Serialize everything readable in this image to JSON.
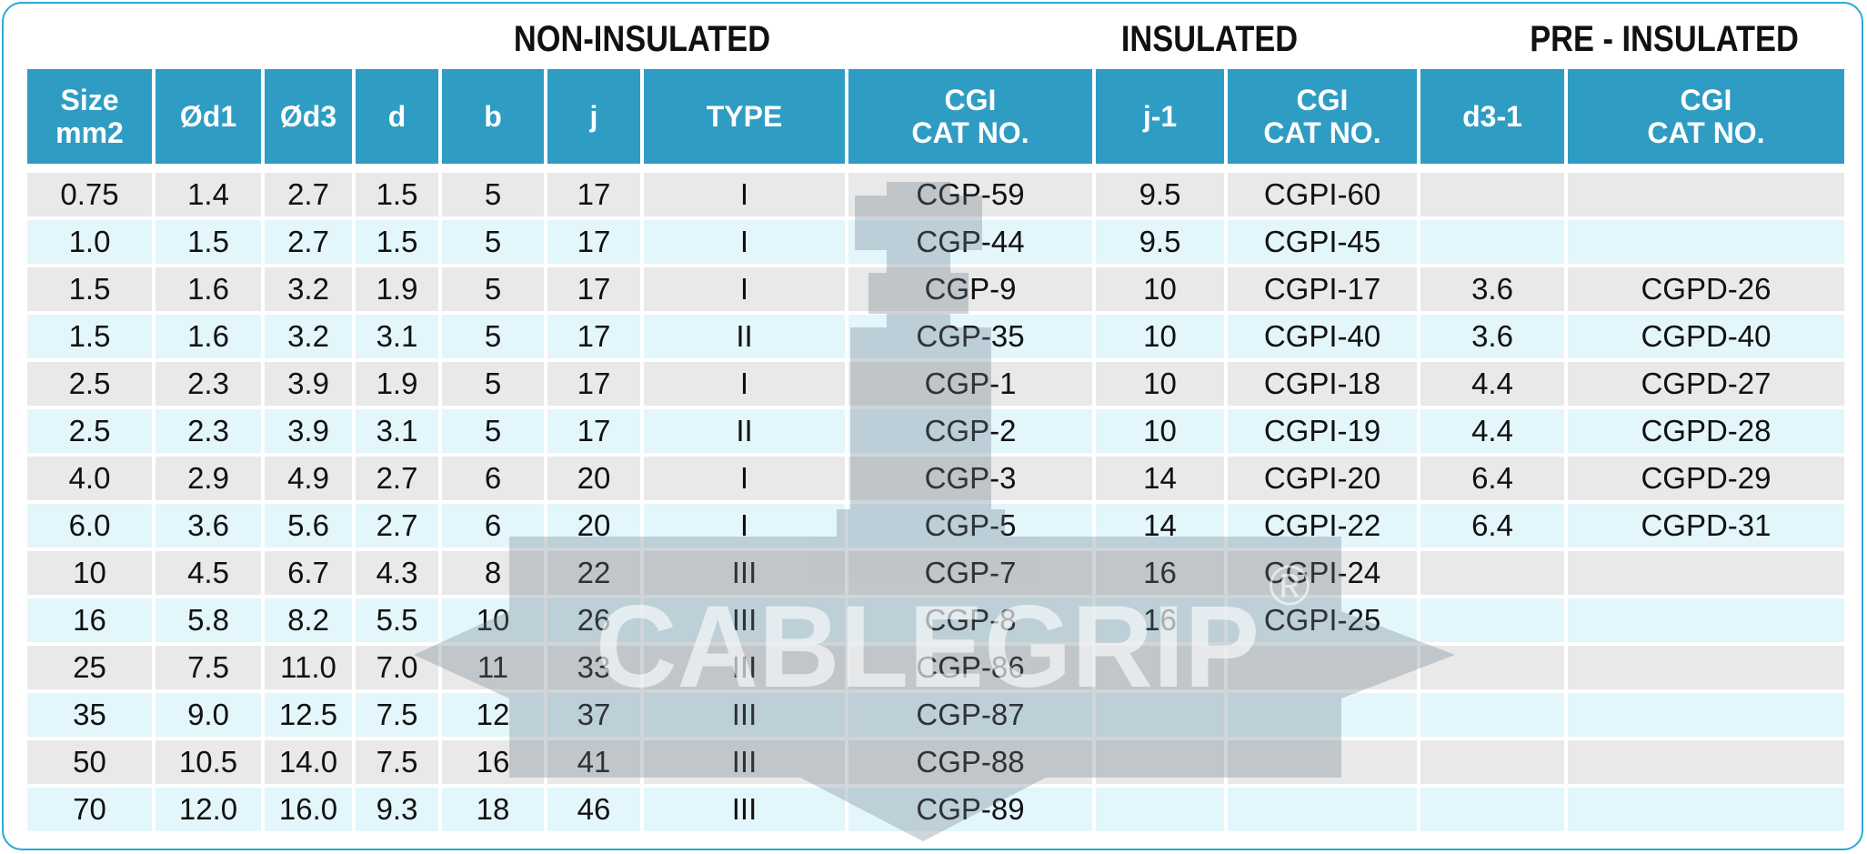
{
  "groups": {
    "non_insulated": "NON-INSULATED",
    "insulated": "INSULATED",
    "pre_insulated": "PRE - INSULATED"
  },
  "columns": [
    "Size\nmm2",
    "Ød1",
    "Ød3",
    "d",
    "b",
    "j",
    "TYPE",
    "CGI\nCAT NO.",
    "j-1",
    "CGI\nCAT NO.",
    "d3-1",
    "CGI\nCAT NO."
  ],
  "rows": [
    [
      "0.75",
      "1.4",
      "2.7",
      "1.5",
      "5",
      "17",
      "I",
      "CGP-59",
      "9.5",
      "CGPI-60",
      "",
      ""
    ],
    [
      "1.0",
      "1.5",
      "2.7",
      "1.5",
      "5",
      "17",
      "I",
      "CGP-44",
      "9.5",
      "CGPI-45",
      "",
      ""
    ],
    [
      "1.5",
      "1.6",
      "3.2",
      "1.9",
      "5",
      "17",
      "I",
      "CGP-9",
      "10",
      "CGPI-17",
      "3.6",
      "CGPD-26"
    ],
    [
      "1.5",
      "1.6",
      "3.2",
      "3.1",
      "5",
      "17",
      "II",
      "CGP-35",
      "10",
      "CGPI-40",
      "3.6",
      "CGPD-40"
    ],
    [
      "2.5",
      "2.3",
      "3.9",
      "1.9",
      "5",
      "17",
      "I",
      "CGP-1",
      "10",
      "CGPI-18",
      "4.4",
      "CGPD-27"
    ],
    [
      "2.5",
      "2.3",
      "3.9",
      "3.1",
      "5",
      "17",
      "II",
      "CGP-2",
      "10",
      "CGPI-19",
      "4.4",
      "CGPD-28"
    ],
    [
      "4.0",
      "2.9",
      "4.9",
      "2.7",
      "6",
      "20",
      "I",
      "CGP-3",
      "14",
      "CGPI-20",
      "6.4",
      "CGPD-29"
    ],
    [
      "6.0",
      "3.6",
      "5.6",
      "2.7",
      "6",
      "20",
      "I",
      "CGP-5",
      "14",
      "CGPI-22",
      "6.4",
      "CGPD-31"
    ],
    [
      "10",
      "4.5",
      "6.7",
      "4.3",
      "8",
      "22",
      "III",
      "CGP-7",
      "16",
      "CGPI-24",
      "",
      ""
    ],
    [
      "16",
      "5.8",
      "8.2",
      "5.5",
      "10",
      "26",
      "III",
      "CGP-8",
      "16",
      "CGPI-25",
      "",
      ""
    ],
    [
      "25",
      "7.5",
      "11.0",
      "7.0",
      "11",
      "33",
      "III",
      "CGP-86",
      "",
      "",
      "",
      ""
    ],
    [
      "35",
      "9.0",
      "12.5",
      "7.5",
      "12",
      "37",
      "III",
      "CGP-87",
      "",
      "",
      "",
      ""
    ],
    [
      "50",
      "10.5",
      "14.0",
      "7.5",
      "16",
      "41",
      "III",
      "CGP-88",
      "",
      "",
      "",
      ""
    ],
    [
      "70",
      "12.0",
      "16.0",
      "9.3",
      "18",
      "46",
      "III",
      "CGP-89",
      "",
      "",
      "",
      ""
    ]
  ],
  "watermark": {
    "text": "CABLEGRIP",
    "mark": "®"
  },
  "colors": {
    "header_bg": "#2f9cc4",
    "row_odd": "#e9e9e9",
    "row_even": "#e3f6fc",
    "frame": "#2aa9d6"
  }
}
